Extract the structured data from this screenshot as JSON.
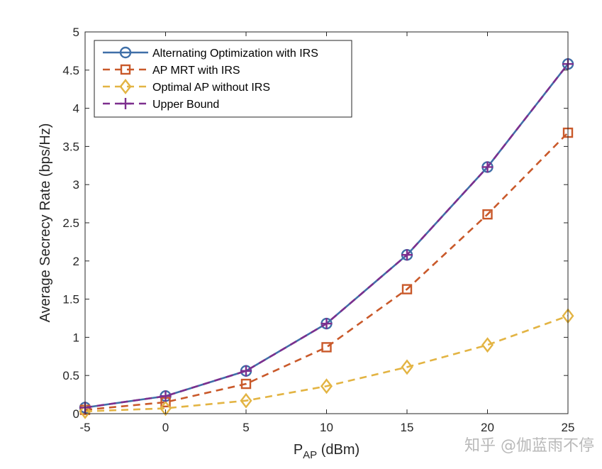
{
  "chart_data": {
    "type": "line",
    "xlabel_main": "P",
    "xlabel_sub": "AP",
    "xlabel_unit": " (dBm)",
    "ylabel": "Average Secrecy Rate (bps/Hz)",
    "xlim": [
      -5,
      25
    ],
    "ylim": [
      0,
      5
    ],
    "x_ticks": [
      -5,
      0,
      5,
      10,
      15,
      20,
      25
    ],
    "y_ticks": [
      0,
      0.5,
      1,
      1.5,
      2,
      2.5,
      3,
      3.5,
      4,
      4.5,
      5
    ],
    "grid": false,
    "legend_position": "top-left",
    "x": [
      -5,
      0,
      5,
      10,
      15,
      20,
      25
    ],
    "series": [
      {
        "name": "Alternating Optimization with IRS",
        "values": [
          0.08,
          0.23,
          0.56,
          1.18,
          2.08,
          3.23,
          4.58
        ],
        "color": "#3f6fa8",
        "marker": "circle",
        "dash": "solid"
      },
      {
        "name": "AP MRT with IRS",
        "values": [
          0.05,
          0.15,
          0.39,
          0.87,
          1.63,
          2.61,
          3.68
        ],
        "color": "#c9592a",
        "marker": "square",
        "dash": "dashed"
      },
      {
        "name": "Optimal AP without IRS",
        "values": [
          0.03,
          0.07,
          0.17,
          0.36,
          0.61,
          0.9,
          1.28
        ],
        "color": "#e3b443",
        "marker": "diamond",
        "dash": "dashed"
      },
      {
        "name": "Upper Bound",
        "values": [
          0.08,
          0.23,
          0.56,
          1.18,
          2.08,
          3.23,
          4.58
        ],
        "color": "#7d2f8e",
        "marker": "plus",
        "dash": "dashed"
      }
    ]
  },
  "watermark": "知乎 @伽蓝雨不停"
}
